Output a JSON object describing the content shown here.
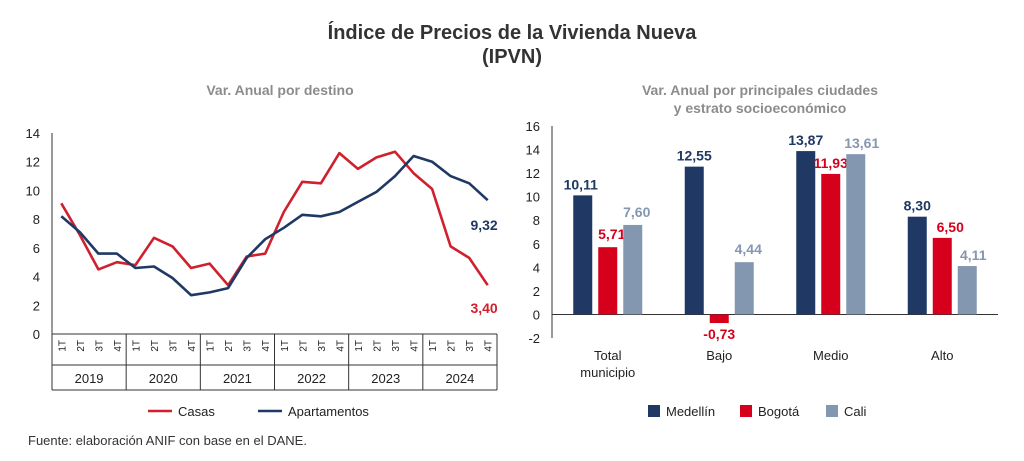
{
  "title_line1": "Índice de Precios de la Vivienda Nueva",
  "title_line2": "(IPVN)",
  "source": "Fuente: elaboración ANIF con base en el DANE.",
  "colors": {
    "casas": "#d0202e",
    "apartamentos": "#1f3864",
    "medellin": "#1f3864",
    "bogota": "#d6001c",
    "cali": "#8497b0"
  },
  "chart_data": [
    {
      "type": "line",
      "title": "Var. Anual por destino",
      "ylim": [
        0,
        14
      ],
      "yticks": [
        "0",
        "2",
        "4",
        "6",
        "8",
        "10",
        "12",
        "14"
      ],
      "quarters": [
        "1T",
        "2T",
        "3T",
        "4T",
        "1T",
        "2T",
        "3T",
        "4T",
        "1T",
        "2T",
        "3T",
        "4T",
        "1T",
        "2T",
        "3T",
        "4T",
        "1T",
        "2T",
        "3T",
        "4T",
        "1T",
        "2T",
        "3T",
        "4T"
      ],
      "years": [
        "2019",
        "2020",
        "2021",
        "2022",
        "2023",
        "2024"
      ],
      "series": [
        {
          "name": "Casas",
          "color_key": "casas",
          "values": [
            9.1,
            6.9,
            4.5,
            5.0,
            4.8,
            6.7,
            6.1,
            4.6,
            4.9,
            3.4,
            5.4,
            5.6,
            8.5,
            10.6,
            10.5,
            12.6,
            11.5,
            12.3,
            12.7,
            11.2,
            10.1,
            6.1,
            5.3,
            3.4
          ],
          "end_label": "3,40"
        },
        {
          "name": "Apartamentos",
          "color_key": "apartamentos",
          "values": [
            8.2,
            7.1,
            5.6,
            5.6,
            4.6,
            4.7,
            3.9,
            2.7,
            2.9,
            3.2,
            5.3,
            6.6,
            7.4,
            8.3,
            8.2,
            8.5,
            9.2,
            9.9,
            11.0,
            12.4,
            12.0,
            11.0,
            10.5,
            9.32
          ],
          "end_label": "9,32"
        }
      ]
    },
    {
      "type": "bar",
      "title_line1": "Var. Anual por principales ciudades",
      "title_line2": "y estrato socioeconómico",
      "ylim": [
        -2,
        16
      ],
      "yticks": [
        "-2",
        "0",
        "2",
        "4",
        "6",
        "8",
        "10",
        "12",
        "14",
        "16"
      ],
      "categories": [
        {
          "line1": "Total",
          "line2": "municipio"
        },
        {
          "line1": "Bajo",
          "line2": ""
        },
        {
          "line1": "Medio",
          "line2": ""
        },
        {
          "line1": "Alto",
          "line2": ""
        }
      ],
      "series": [
        {
          "name": "Medellín",
          "color_key": "medellin",
          "values": [
            10.11,
            12.55,
            13.87,
            8.3
          ],
          "labels": [
            "10,11",
            "12,55",
            "13,87",
            "8,30"
          ]
        },
        {
          "name": "Bogotá",
          "color_key": "bogota",
          "values": [
            5.71,
            -0.73,
            11.93,
            6.5
          ],
          "labels": [
            "5,71",
            "-0,73",
            "11,93",
            "6,50"
          ]
        },
        {
          "name": "Cali",
          "color_key": "cali",
          "values": [
            7.6,
            4.44,
            13.61,
            4.11
          ],
          "labels": [
            "7,60",
            "4,44",
            "13,61",
            "4,11"
          ]
        }
      ]
    }
  ]
}
